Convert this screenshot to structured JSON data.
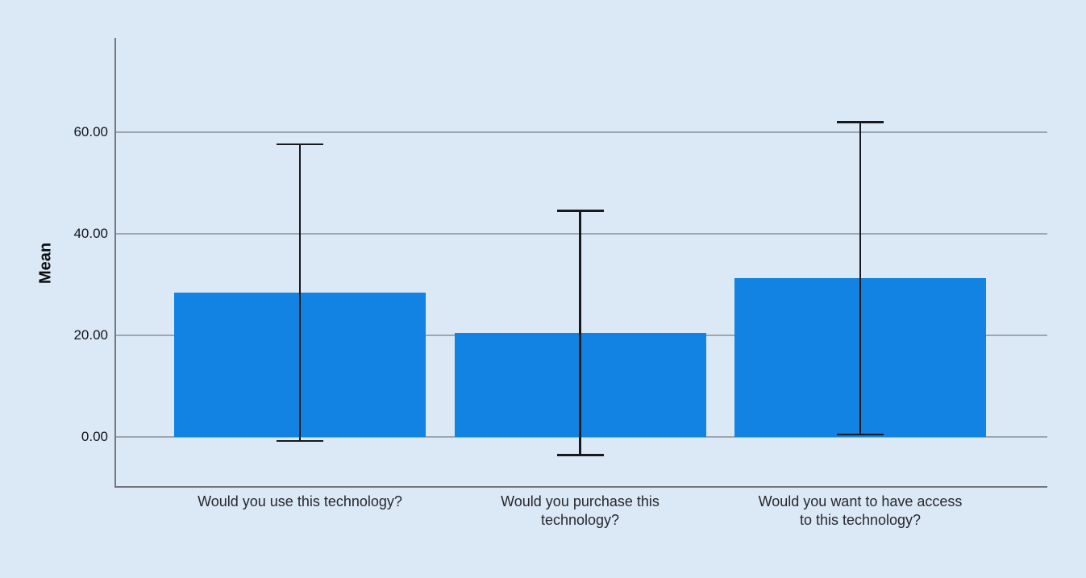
{
  "chart_data": {
    "type": "bar",
    "title": "",
    "ylabel": "Mean",
    "xlabel": "",
    "categories": [
      "Would you use this technology?",
      "Would you purchase this technology?",
      "Would you want to have access to this technology?"
    ],
    "category_label_lines": [
      [
        "Would you use this technology?"
      ],
      [
        "Would you purchase this",
        "technology?"
      ],
      [
        "Would you want to have access",
        "to this technology?"
      ]
    ],
    "values": [
      28.4,
      20.5,
      31.3
    ],
    "error_bars": {
      "upper": [
        57.6,
        44.5,
        62.0
      ],
      "lower": [
        -0.8,
        -3.6,
        0.5
      ]
    },
    "yticks": [
      0,
      20,
      40,
      60
    ],
    "ytick_labels": [
      "0.00",
      "20.00",
      "40.00",
      "60.00"
    ],
    "ylim": [
      -9.7,
      78.6
    ],
    "grid": true,
    "legend": false,
    "bar_color": "#1283e2",
    "error_bar_color": "#17191c",
    "background_color": "#dbe8f6"
  }
}
